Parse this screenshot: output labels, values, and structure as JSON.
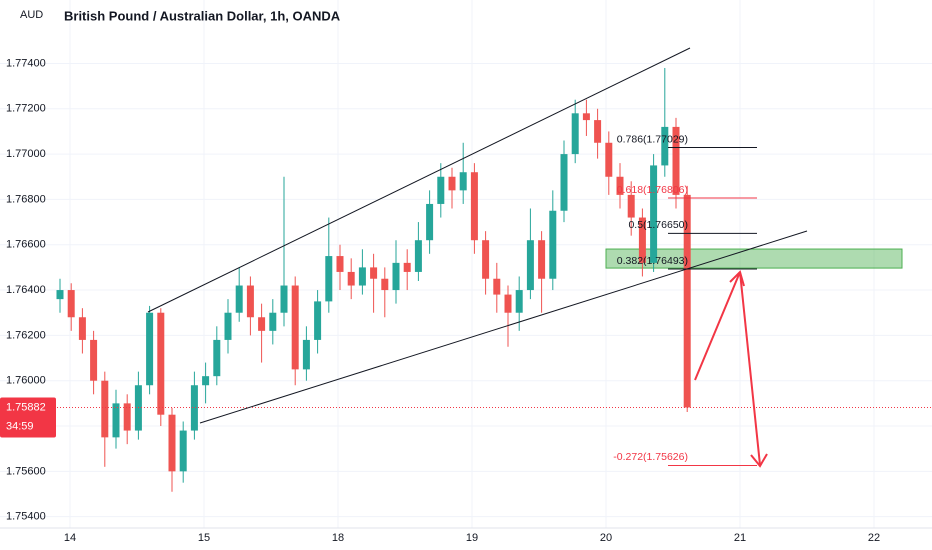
{
  "chart_data": {
    "type": "candlestick",
    "title": "British Pound / Australian Dollar, 1h, OANDA",
    "currency": "AUD",
    "up_color": "#26a69a",
    "down_color": "#ef5350",
    "ylim": [
      1.7535,
      1.7768
    ],
    "yticks": [
      {
        "value": 1.774,
        "label": "1.77400"
      },
      {
        "value": 1.772,
        "label": "1.77200"
      },
      {
        "value": 1.77,
        "label": "1.77000"
      },
      {
        "value": 1.768,
        "label": "1.76800"
      },
      {
        "value": 1.766,
        "label": "1.76600"
      },
      {
        "value": 1.764,
        "label": "1.76400"
      },
      {
        "value": 1.762,
        "label": "1.76200"
      },
      {
        "value": 1.76,
        "label": "1.76000"
      },
      {
        "value": 1.758,
        "label": "1.75800"
      },
      {
        "value": 1.756,
        "label": "1.75600"
      },
      {
        "value": 1.754,
        "label": "1.75400"
      }
    ],
    "x_labels": [
      "14",
      "15",
      "18",
      "19",
      "20",
      "21",
      "22"
    ],
    "grid": true,
    "candles": [
      [
        1.7636,
        1.7645,
        1.763,
        1.764
      ],
      [
        1.764,
        1.7643,
        1.7622,
        1.7628
      ],
      [
        1.7628,
        1.7632,
        1.7612,
        1.7618
      ],
      [
        1.7618,
        1.7622,
        1.7594,
        1.76
      ],
      [
        1.76,
        1.7604,
        1.7562,
        1.7575
      ],
      [
        1.7575,
        1.7596,
        1.757,
        1.759
      ],
      [
        1.759,
        1.7594,
        1.7572,
        1.7578
      ],
      [
        1.7578,
        1.7604,
        1.7574,
        1.7598
      ],
      [
        1.7598,
        1.7633,
        1.7594,
        1.763
      ],
      [
        1.763,
        1.7632,
        1.758,
        1.7585
      ],
      [
        1.7585,
        1.7588,
        1.7551,
        1.756
      ],
      [
        1.756,
        1.7582,
        1.7555,
        1.7578
      ],
      [
        1.7578,
        1.7604,
        1.7574,
        1.7598
      ],
      [
        1.7598,
        1.7608,
        1.759,
        1.7602
      ],
      [
        1.7602,
        1.7624,
        1.7598,
        1.7618
      ],
      [
        1.7618,
        1.7636,
        1.7612,
        1.763
      ],
      [
        1.763,
        1.765,
        1.7626,
        1.7642
      ],
      [
        1.7642,
        1.7646,
        1.762,
        1.7628
      ],
      [
        1.7628,
        1.7634,
        1.7608,
        1.7622
      ],
      [
        1.7622,
        1.7636,
        1.7616,
        1.763
      ],
      [
        1.763,
        1.769,
        1.7624,
        1.7642
      ],
      [
        1.7642,
        1.7646,
        1.7598,
        1.7605
      ],
      [
        1.7605,
        1.7624,
        1.76,
        1.7618
      ],
      [
        1.7618,
        1.764,
        1.7612,
        1.7635
      ],
      [
        1.7635,
        1.7672,
        1.763,
        1.7655
      ],
      [
        1.7655,
        1.766,
        1.764,
        1.7648
      ],
      [
        1.7648,
        1.7654,
        1.7636,
        1.7642
      ],
      [
        1.7642,
        1.7658,
        1.7638,
        1.765
      ],
      [
        1.765,
        1.7656,
        1.763,
        1.7645
      ],
      [
        1.7645,
        1.765,
        1.7628,
        1.764
      ],
      [
        1.764,
        1.7662,
        1.7634,
        1.7652
      ],
      [
        1.7652,
        1.7658,
        1.764,
        1.7648
      ],
      [
        1.7648,
        1.767,
        1.7644,
        1.7662
      ],
      [
        1.7662,
        1.7684,
        1.7656,
        1.7678
      ],
      [
        1.7678,
        1.7696,
        1.7672,
        1.769
      ],
      [
        1.769,
        1.7694,
        1.7676,
        1.7684
      ],
      [
        1.7684,
        1.7705,
        1.7678,
        1.7692
      ],
      [
        1.7692,
        1.7696,
        1.7656,
        1.7662
      ],
      [
        1.7662,
        1.7666,
        1.7638,
        1.7645
      ],
      [
        1.7645,
        1.7652,
        1.763,
        1.7638
      ],
      [
        1.7638,
        1.7642,
        1.7615,
        1.763
      ],
      [
        1.763,
        1.7646,
        1.7622,
        1.764
      ],
      [
        1.764,
        1.7676,
        1.7636,
        1.7662
      ],
      [
        1.7662,
        1.7666,
        1.763,
        1.7645
      ],
      [
        1.7645,
        1.7684,
        1.764,
        1.7675
      ],
      [
        1.7675,
        1.7706,
        1.767,
        1.77
      ],
      [
        1.77,
        1.7724,
        1.7696,
        1.7718
      ],
      [
        1.7718,
        1.7724,
        1.7708,
        1.7715
      ],
      [
        1.7715,
        1.772,
        1.7698,
        1.7705
      ],
      [
        1.7705,
        1.771,
        1.7682,
        1.769
      ],
      [
        1.769,
        1.7696,
        1.7676,
        1.7682
      ],
      [
        1.7682,
        1.7688,
        1.7664,
        1.7672
      ],
      [
        1.7672,
        1.7676,
        1.7646,
        1.7652
      ],
      [
        1.7652,
        1.77,
        1.7648,
        1.7695
      ],
      [
        1.7695,
        1.7738,
        1.769,
        1.7712
      ],
      [
        1.7712,
        1.7716,
        1.7676,
        1.7682
      ],
      [
        1.7682,
        1.7686,
        1.75862,
        1.75882
      ]
    ],
    "fib_levels": [
      {
        "label": "0.786(1.77029)",
        "value": 1.77029,
        "color": "#131722"
      },
      {
        "label": "0.618(1.76806)",
        "value": 1.76806,
        "color": "#f23645"
      },
      {
        "label": "0.5(1.76650)",
        "value": 1.7665,
        "color": "#131722"
      },
      {
        "label": "0.382(1.76493)",
        "value": 1.76493,
        "color": "#131722"
      },
      {
        "label": "-0.272(1.75626)",
        "value": 1.75626,
        "color": "#f23645"
      }
    ],
    "zone": {
      "top": 1.76581,
      "bottom": 1.76497,
      "color": "#4caf50"
    },
    "last_price": 1.75882,
    "countdown": "34:59",
    "last_price_color": "#f23645"
  }
}
